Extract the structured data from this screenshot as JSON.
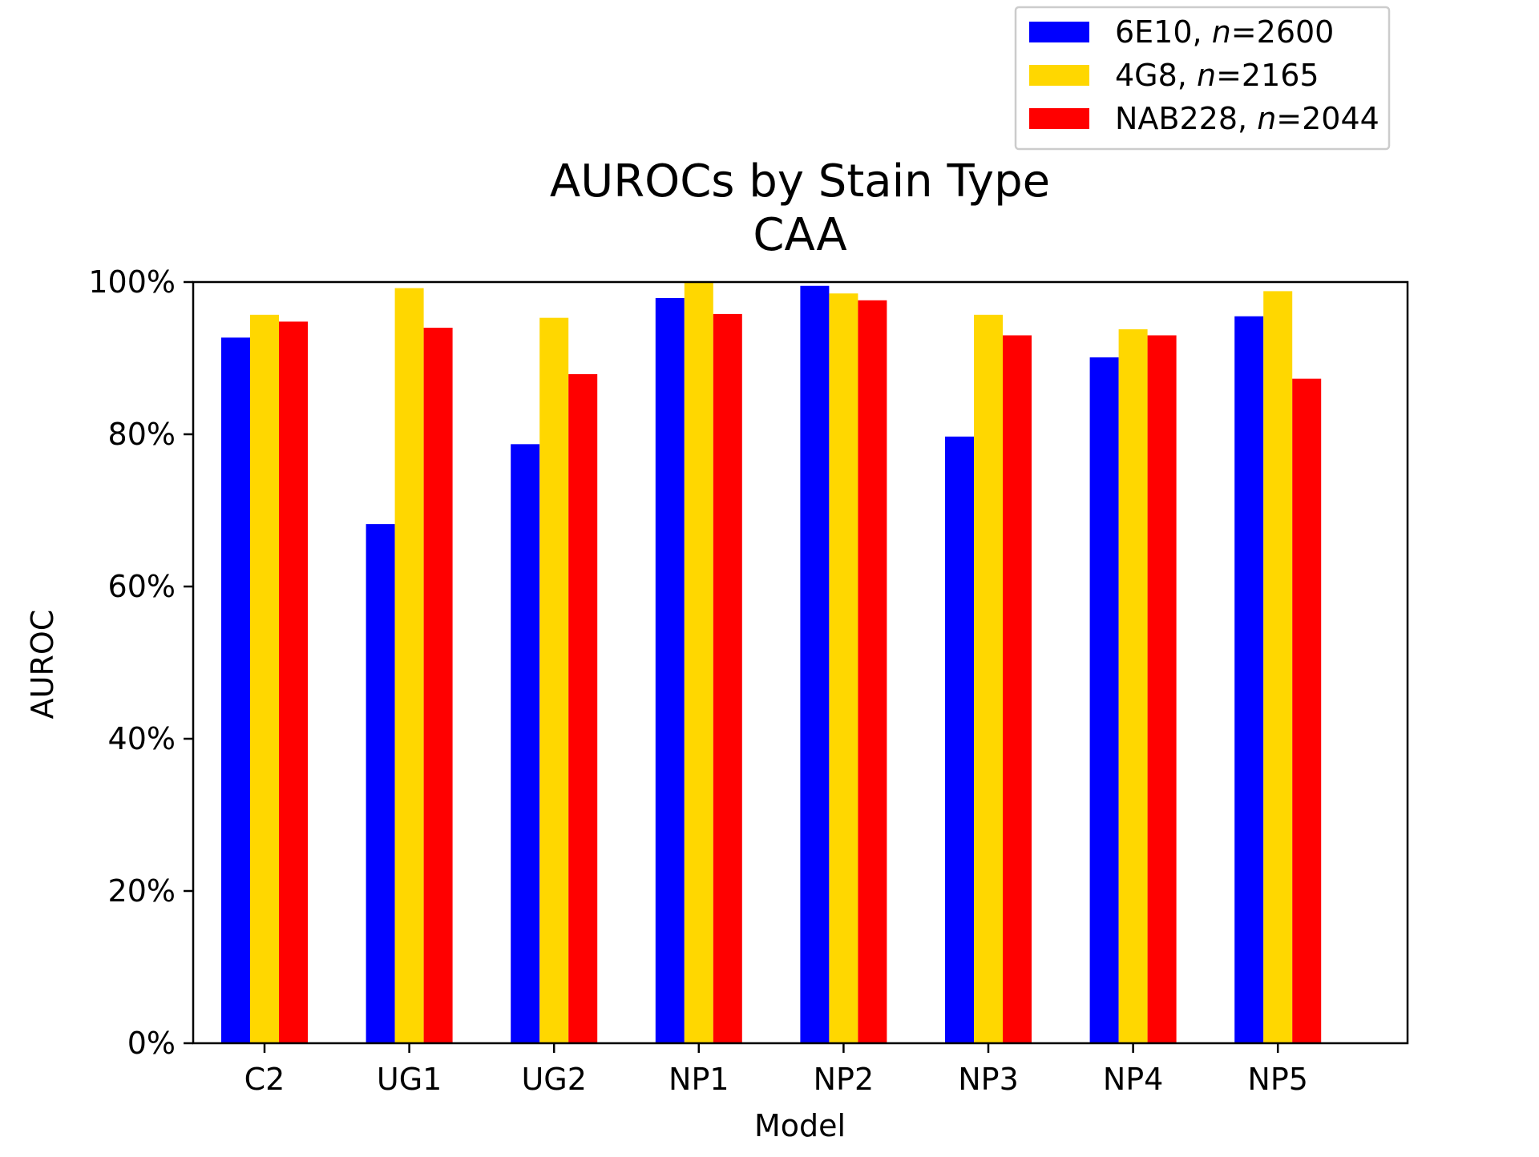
{
  "chart_data": {
    "type": "bar",
    "title_line1": "AUROCs by Stain Type",
    "title_line2": "CAA",
    "xlabel": "Model",
    "ylabel": "AUROC",
    "categories": [
      "C2",
      "UG1",
      "UG2",
      "NP1",
      "NP2",
      "NP3",
      "NP4",
      "NP5"
    ],
    "ylim": [
      0,
      100
    ],
    "yticks": [
      0,
      20,
      40,
      60,
      80,
      100
    ],
    "ytick_labels": [
      "0%",
      "20%",
      "40%",
      "60%",
      "80%",
      "100%"
    ],
    "grid": false,
    "legend_position": "top-right",
    "series": [
      {
        "name_prefix": "6E10, ",
        "name_var": "n",
        "name_suffix": "=2600",
        "color": "#0000ff",
        "values": [
          92.7,
          68.2,
          78.7,
          97.9,
          99.5,
          79.7,
          90.1,
          95.5
        ]
      },
      {
        "name_prefix": "4G8, ",
        "name_var": "n",
        "name_suffix": "=2165",
        "color": "#ffd700",
        "values": [
          95.7,
          99.2,
          95.3,
          100.0,
          98.5,
          95.7,
          93.8,
          98.8
        ]
      },
      {
        "name_prefix": "NAB228, ",
        "name_var": "n",
        "name_suffix": "=2044",
        "color": "#ff0000",
        "values": [
          94.8,
          94.0,
          87.9,
          95.8,
          97.6,
          93.0,
          93.0,
          87.3
        ]
      }
    ]
  }
}
